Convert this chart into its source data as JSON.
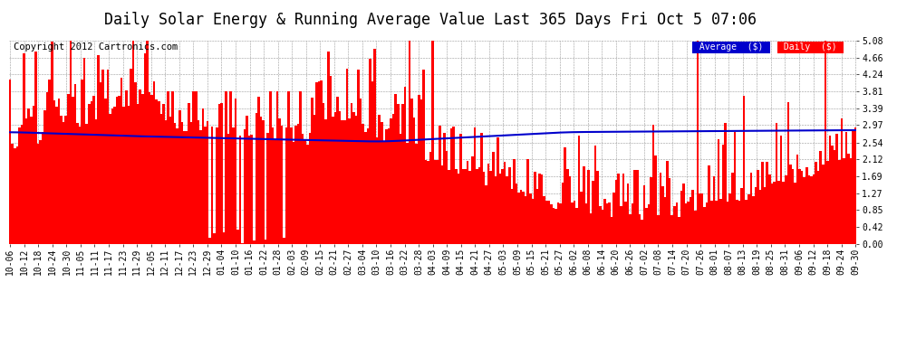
{
  "title": "Daily Solar Energy & Running Average Value Last 365 Days Fri Oct 5 07:06",
  "copyright": "Copyright 2012 Cartronics.com",
  "ylabel_right_ticks": [
    0.0,
    0.42,
    0.85,
    1.27,
    1.69,
    2.12,
    2.54,
    2.97,
    3.39,
    3.81,
    4.24,
    4.66,
    5.08
  ],
  "ylim": [
    0,
    5.08
  ],
  "bar_color": "#ff0000",
  "avg_line_color": "#0000cc",
  "bg_color": "#ffffff",
  "plot_bg_color": "#ffffff",
  "grid_color": "#999999",
  "legend_avg_bg": "#0000cc",
  "legend_daily_bg": "#ff0000",
  "legend_text_color": "#ffffff",
  "title_fontsize": 12,
  "copyright_fontsize": 7.5,
  "tick_fontsize": 7,
  "x_labels": [
    "10-06",
    "10-12",
    "10-18",
    "10-24",
    "10-30",
    "11-05",
    "11-11",
    "11-17",
    "11-23",
    "11-29",
    "12-05",
    "12-11",
    "12-17",
    "12-23",
    "12-29",
    "01-04",
    "01-10",
    "01-16",
    "01-22",
    "01-28",
    "02-03",
    "02-09",
    "02-15",
    "02-21",
    "02-27",
    "03-04",
    "03-10",
    "03-16",
    "03-22",
    "03-28",
    "04-03",
    "04-09",
    "04-15",
    "04-21",
    "04-27",
    "05-03",
    "05-09",
    "05-15",
    "05-21",
    "05-27",
    "06-02",
    "06-08",
    "06-14",
    "06-20",
    "06-26",
    "07-02",
    "07-08",
    "07-14",
    "07-20",
    "07-26",
    "08-01",
    "08-07",
    "08-13",
    "08-19",
    "08-25",
    "08-31",
    "09-06",
    "09-12",
    "09-18",
    "09-24",
    "09-30"
  ]
}
